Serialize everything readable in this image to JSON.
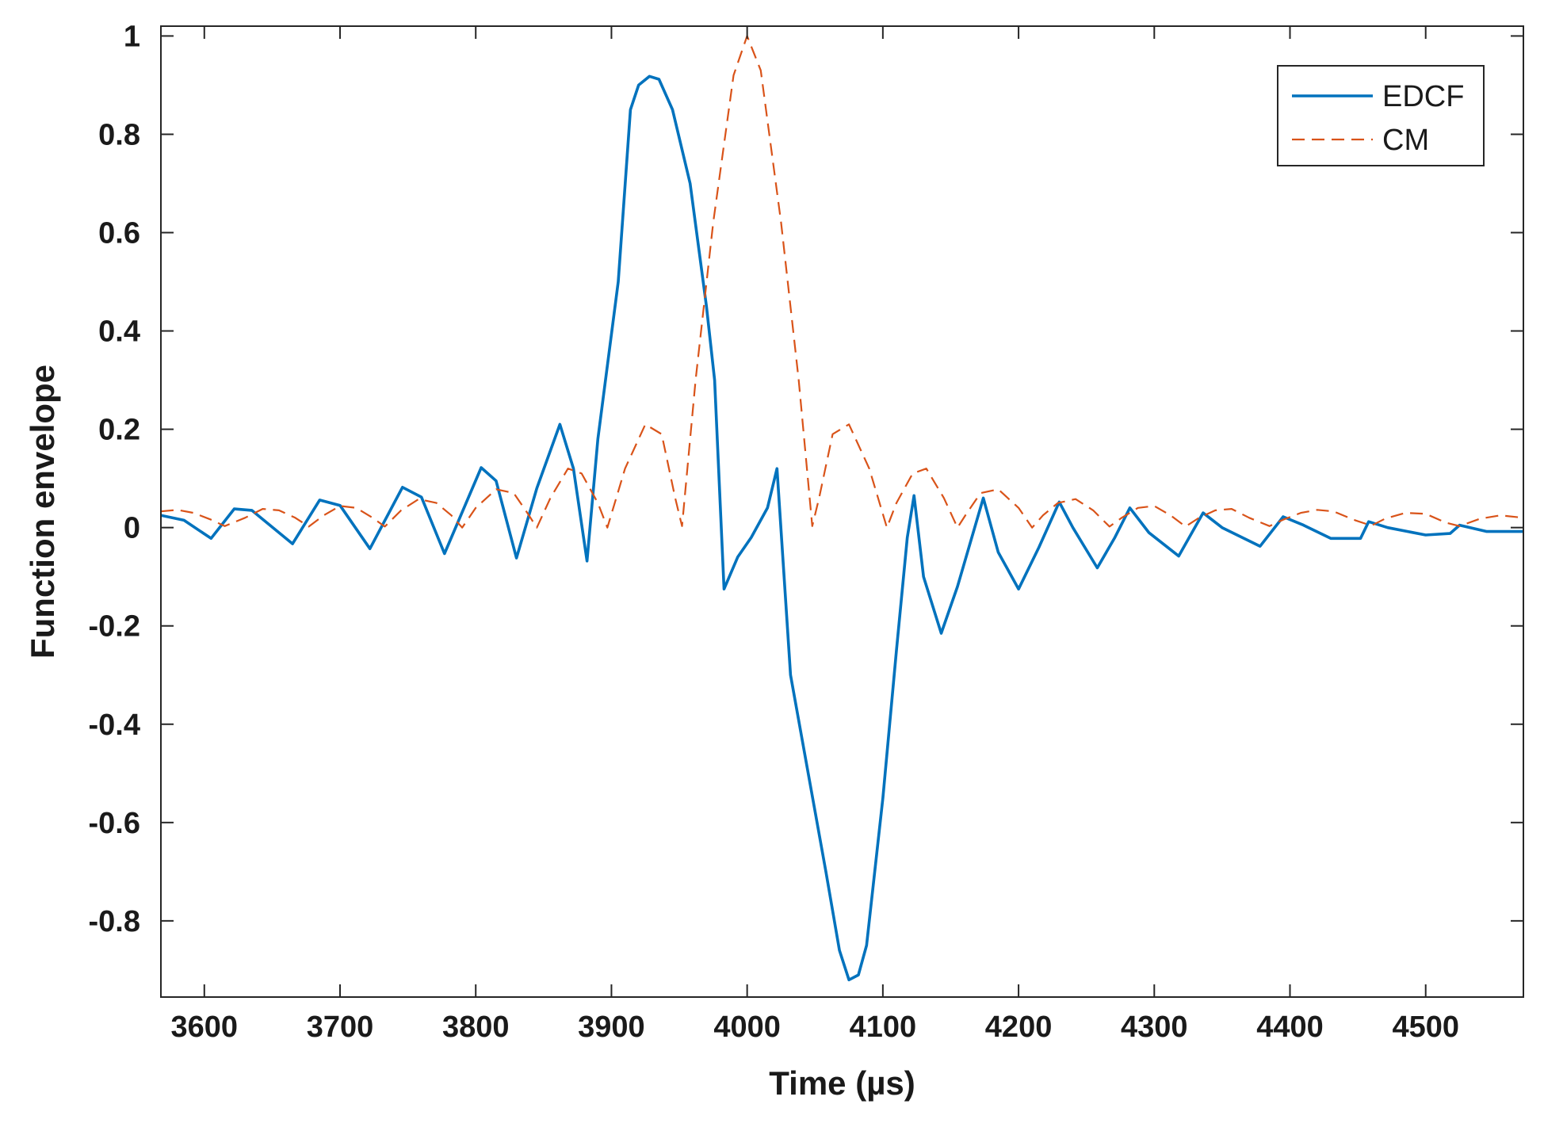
{
  "chart_data": {
    "type": "line",
    "xlabel": "Time (µs)",
    "ylabel": "Function envelope",
    "xlim": [
      3568,
      4572
    ],
    "ylim": [
      -0.955,
      1.02
    ],
    "xticks": [
      3600,
      3700,
      3800,
      3900,
      4000,
      4100,
      4200,
      4300,
      4400,
      4500
    ],
    "yticks": [
      -0.8,
      -0.6,
      -0.4,
      -0.2,
      0,
      0.2,
      0.4,
      0.6,
      0.8,
      1
    ],
    "ytick_labels": [
      "-0.8",
      "-0.6",
      "-0.4",
      "-0.2",
      "0",
      "0.2",
      "0.4",
      "0.6",
      "0.8",
      "1"
    ],
    "grid": false,
    "legend_position": "top-right",
    "series": [
      {
        "name": "EDCF",
        "color": "#0072BD",
        "style": "solid",
        "points": [
          [
            3568,
            0.025
          ],
          [
            3585,
            0.015
          ],
          [
            3605,
            -0.022
          ],
          [
            3622,
            0.038
          ],
          [
            3635,
            0.035
          ],
          [
            3665,
            -0.033
          ],
          [
            3685,
            0.056
          ],
          [
            3700,
            0.045
          ],
          [
            3722,
            -0.043
          ],
          [
            3746,
            0.082
          ],
          [
            3760,
            0.062
          ],
          [
            3777,
            -0.053
          ],
          [
            3804,
            0.122
          ],
          [
            3815,
            0.095
          ],
          [
            3830,
            -0.062
          ],
          [
            3845,
            0.08
          ],
          [
            3862,
            0.21
          ],
          [
            3872,
            0.12
          ],
          [
            3882,
            -0.068
          ],
          [
            3890,
            0.18
          ],
          [
            3905,
            0.5
          ],
          [
            3914,
            0.85
          ],
          [
            3920,
            0.9
          ],
          [
            3928,
            0.918
          ],
          [
            3935,
            0.912
          ],
          [
            3945,
            0.85
          ],
          [
            3958,
            0.7
          ],
          [
            3970,
            0.45
          ],
          [
            3976,
            0.3
          ],
          [
            3983,
            -0.125
          ],
          [
            3993,
            -0.06
          ],
          [
            4003,
            -0.02
          ],
          [
            4015,
            0.04
          ],
          [
            4022,
            0.12
          ],
          [
            4032,
            -0.3
          ],
          [
            4045,
            -0.5
          ],
          [
            4058,
            -0.7
          ],
          [
            4068,
            -0.86
          ],
          [
            4075,
            -0.92
          ],
          [
            4082,
            -0.91
          ],
          [
            4088,
            -0.85
          ],
          [
            4100,
            -0.55
          ],
          [
            4110,
            -0.25
          ],
          [
            4118,
            -0.02
          ],
          [
            4123,
            0.065
          ],
          [
            4130,
            -0.1
          ],
          [
            4143,
            -0.215
          ],
          [
            4155,
            -0.12
          ],
          [
            4174,
            0.06
          ],
          [
            4185,
            -0.05
          ],
          [
            4200,
            -0.125
          ],
          [
            4215,
            -0.04
          ],
          [
            4230,
            0.052
          ],
          [
            4240,
            0.0
          ],
          [
            4258,
            -0.082
          ],
          [
            4271,
            -0.02
          ],
          [
            4282,
            0.04
          ],
          [
            4296,
            -0.01
          ],
          [
            4318,
            -0.058
          ],
          [
            4336,
            0.03
          ],
          [
            4350,
            0.0
          ],
          [
            4378,
            -0.038
          ],
          [
            4395,
            0.022
          ],
          [
            4410,
            0.005
          ],
          [
            4430,
            -0.022
          ],
          [
            4452,
            -0.022
          ],
          [
            4458,
            0.012
          ],
          [
            4472,
            0.0
          ],
          [
            4500,
            -0.015
          ],
          [
            4518,
            -0.012
          ],
          [
            4525,
            0.005
          ],
          [
            4545,
            -0.008
          ],
          [
            4572,
            -0.008
          ]
        ]
      },
      {
        "name": "CM",
        "color": "#D95319",
        "style": "dashed",
        "points": [
          [
            3568,
            0.033
          ],
          [
            3580,
            0.036
          ],
          [
            3592,
            0.03
          ],
          [
            3605,
            0.016
          ],
          [
            3615,
            0.003
          ],
          [
            3630,
            0.02
          ],
          [
            3643,
            0.038
          ],
          [
            3655,
            0.035
          ],
          [
            3667,
            0.02
          ],
          [
            3677,
            0.002
          ],
          [
            3688,
            0.025
          ],
          [
            3700,
            0.044
          ],
          [
            3712,
            0.04
          ],
          [
            3724,
            0.02
          ],
          [
            3733,
            0.002
          ],
          [
            3745,
            0.035
          ],
          [
            3758,
            0.058
          ],
          [
            3771,
            0.05
          ],
          [
            3782,
            0.025
          ],
          [
            3790,
            0.0
          ],
          [
            3800,
            0.04
          ],
          [
            3815,
            0.078
          ],
          [
            3828,
            0.07
          ],
          [
            3838,
            0.03
          ],
          [
            3845,
            0.0
          ],
          [
            3855,
            0.06
          ],
          [
            3868,
            0.12
          ],
          [
            3878,
            0.11
          ],
          [
            3890,
            0.05
          ],
          [
            3897,
            0.0
          ],
          [
            3910,
            0.12
          ],
          [
            3925,
            0.21
          ],
          [
            3937,
            0.19
          ],
          [
            3947,
            0.06
          ],
          [
            3952,
            0.003
          ],
          [
            3962,
            0.3
          ],
          [
            3975,
            0.62
          ],
          [
            3990,
            0.92
          ],
          [
            4000,
            1.0
          ],
          [
            4010,
            0.93
          ],
          [
            4025,
            0.62
          ],
          [
            4038,
            0.3
          ],
          [
            4048,
            0.003
          ],
          [
            4053,
            0.06
          ],
          [
            4063,
            0.19
          ],
          [
            4075,
            0.21
          ],
          [
            4090,
            0.12
          ],
          [
            4103,
            0.0
          ],
          [
            4110,
            0.05
          ],
          [
            4122,
            0.11
          ],
          [
            4132,
            0.12
          ],
          [
            4145,
            0.06
          ],
          [
            4155,
            0.0
          ],
          [
            4162,
            0.03
          ],
          [
            4172,
            0.07
          ],
          [
            4185,
            0.078
          ],
          [
            4200,
            0.04
          ],
          [
            4210,
            0.0
          ],
          [
            4218,
            0.025
          ],
          [
            4229,
            0.05
          ],
          [
            4242,
            0.058
          ],
          [
            4255,
            0.035
          ],
          [
            4267,
            0.002
          ],
          [
            4276,
            0.02
          ],
          [
            4288,
            0.04
          ],
          [
            4300,
            0.044
          ],
          [
            4312,
            0.025
          ],
          [
            4323,
            0.002
          ],
          [
            4333,
            0.02
          ],
          [
            4345,
            0.035
          ],
          [
            4357,
            0.038
          ],
          [
            4370,
            0.02
          ],
          [
            4385,
            0.003
          ],
          [
            4395,
            0.016
          ],
          [
            4408,
            0.03
          ],
          [
            4420,
            0.036
          ],
          [
            4432,
            0.033
          ],
          [
            4448,
            0.015
          ],
          [
            4460,
            0.004
          ],
          [
            4470,
            0.018
          ],
          [
            4485,
            0.03
          ],
          [
            4500,
            0.028
          ],
          [
            4515,
            0.01
          ],
          [
            4525,
            0.003
          ],
          [
            4540,
            0.018
          ],
          [
            4555,
            0.025
          ],
          [
            4572,
            0.02
          ]
        ]
      }
    ]
  }
}
